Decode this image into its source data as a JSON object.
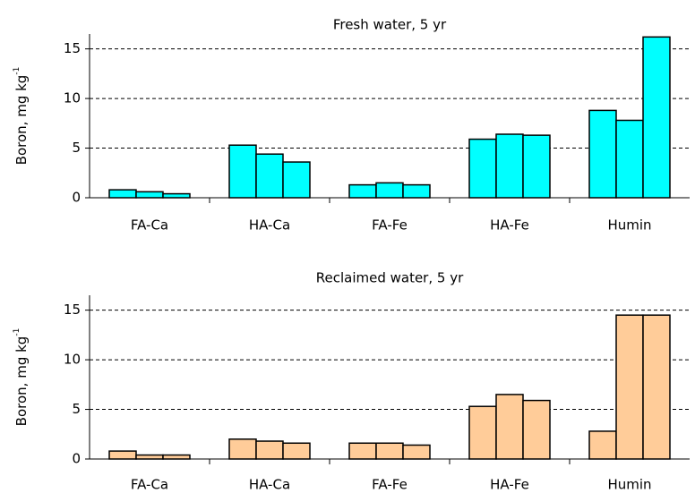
{
  "chart_data": [
    {
      "type": "bar",
      "title": "Fresh water, 5 yr",
      "ylabel": {
        "text": "Boron, mg kg",
        "superscript": "-1"
      },
      "categories": [
        "FA-Ca",
        "HA-Ca",
        "FA-Fe",
        "HA-Fe",
        "Humin"
      ],
      "series": [
        {
          "color": "#00ffff",
          "values": [
            0.8,
            5.3,
            1.3,
            5.9,
            8.8
          ]
        },
        {
          "color": "#00ffff",
          "values": [
            0.6,
            4.4,
            1.5,
            6.4,
            7.8
          ]
        },
        {
          "color": "#00ffff",
          "values": [
            0.4,
            3.6,
            1.3,
            6.3,
            16.2
          ]
        }
      ],
      "ylim": [
        0,
        16.5
      ],
      "yticks": [
        0,
        5,
        10,
        15
      ],
      "grid": true
    },
    {
      "type": "bar",
      "title": "Reclaimed water, 5 yr",
      "ylabel": {
        "text": "Boron, mg kg",
        "superscript": "-1"
      },
      "categories": [
        "FA-Ca",
        "HA-Ca",
        "FA-Fe",
        "HA-Fe",
        "Humin"
      ],
      "series": [
        {
          "color": "#ffcc99",
          "values": [
            0.8,
            2.0,
            1.6,
            5.3,
            2.8
          ]
        },
        {
          "color": "#ffcc99",
          "values": [
            0.4,
            1.8,
            1.6,
            6.5,
            14.5
          ]
        },
        {
          "color": "#ffcc99",
          "values": [
            0.4,
            1.6,
            1.4,
            5.9,
            14.5
          ]
        }
      ],
      "ylim": [
        0,
        16.5
      ],
      "yticks": [
        0,
        5,
        10,
        15
      ],
      "grid": true
    }
  ]
}
